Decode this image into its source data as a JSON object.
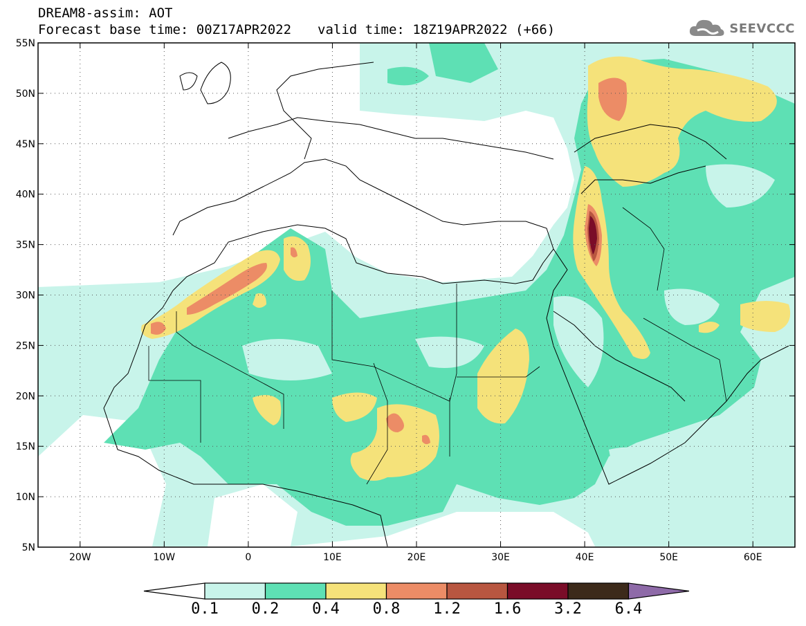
{
  "header": {
    "title": "DREAM8-assim: AOT",
    "base_time_label": "Forecast base time: 00Z17APR2022",
    "valid_time_label": "valid time: 18Z19APR2022 (+66)"
  },
  "logo": {
    "text": "SEEVCCC",
    "icon": "cloud-icon"
  },
  "map": {
    "lat_labels": [
      "55N",
      "50N",
      "45N",
      "40N",
      "35N",
      "30N",
      "25N",
      "20N",
      "15N",
      "10N",
      "5N"
    ],
    "lon_labels": [
      "20W",
      "10W",
      "0",
      "10E",
      "20E",
      "30E",
      "40E",
      "50E",
      "60E"
    ],
    "lat_range": [
      5,
      55
    ],
    "lon_range": [
      -25,
      65
    ],
    "grid": true
  },
  "colorbar": {
    "labels": [
      "0.1",
      "0.2",
      "0.4",
      "0.8",
      "1.2",
      "1.6",
      "3.2",
      "6.4"
    ],
    "colors": [
      "#c8f4ea",
      "#5ee0b4",
      "#f5e27a",
      "#ec8c66",
      "#b85640",
      "#7a0c28",
      "#3c2a1a"
    ],
    "under_color": "#ffffff",
    "over_color": "#8e6aa8"
  }
}
